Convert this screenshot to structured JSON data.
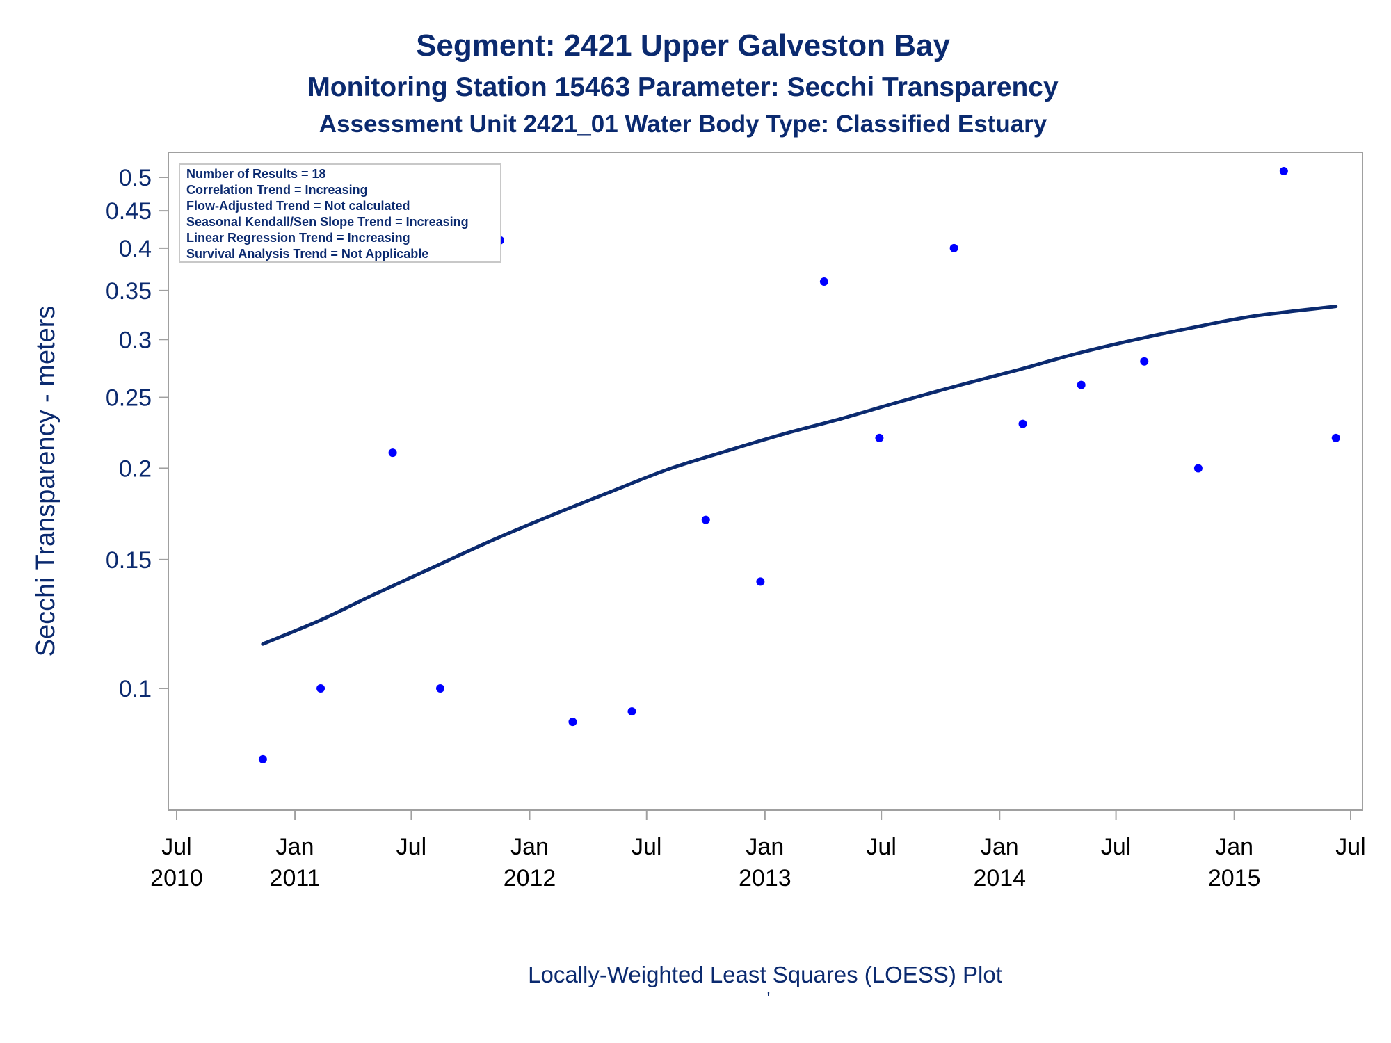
{
  "titles": [
    "Segment: 2421  Upper Galveston Bay",
    "Monitoring Station 15463 Parameter: Secchi Transparency",
    "Assessment Unit 2421_01   Water Body Type: Classified Estuary"
  ],
  "footnote": "Locally-Weighted Least Squares (LOESS) Plot",
  "footnote_mark": "'",
  "stats_box": [
    "Number of Results = 18",
    "Correlation Trend = Increasing",
    "Flow-Adjusted Trend = Not calculated",
    "Seasonal Kendall/Sen Slope Trend = Increasing",
    "Linear Regression Trend = Increasing",
    "Survival Analysis Trend = Not Applicable"
  ],
  "colors": {
    "text": "#0b2a6f",
    "points": "#0000ff",
    "loess_line": "#0b2a6f",
    "frame": "#a0a0a0"
  },
  "chart_data": {
    "type": "scatter",
    "ylabel": "Secchi Transparency - meters",
    "xlabel": "",
    "y_scale": "log",
    "ylim": [
      0.075,
      0.52
    ],
    "xlim": [
      "2010-07-01",
      "2015-07-01"
    ],
    "y_ticks": [
      "0.1",
      "0.15",
      "0.2",
      "0.25",
      "0.3",
      "0.35",
      "0.4",
      "0.45",
      "0.5"
    ],
    "x_ticks": [
      {
        "date": "2010-07-01",
        "label": [
          "Jul",
          "2010"
        ]
      },
      {
        "date": "2011-01-01",
        "label": [
          "Jan",
          "2011"
        ]
      },
      {
        "date": "2011-07-01",
        "label": [
          "Jul",
          ""
        ]
      },
      {
        "date": "2012-01-01",
        "label": [
          "Jan",
          "2012"
        ]
      },
      {
        "date": "2012-07-01",
        "label": [
          "Jul",
          ""
        ]
      },
      {
        "date": "2013-01-01",
        "label": [
          "Jan",
          "2013"
        ]
      },
      {
        "date": "2013-07-01",
        "label": [
          "Jul",
          ""
        ]
      },
      {
        "date": "2014-01-01",
        "label": [
          "Jan",
          "2014"
        ]
      },
      {
        "date": "2014-07-01",
        "label": [
          "Jul",
          ""
        ]
      },
      {
        "date": "2015-01-01",
        "label": [
          "Jan",
          "2015"
        ]
      },
      {
        "date": "2015-07-01",
        "label": [
          "Jul",
          ""
        ]
      }
    ],
    "points": [
      {
        "x": "2010-11-12",
        "y": 0.08
      },
      {
        "x": "2011-02-10",
        "y": 0.1
      },
      {
        "x": "2011-06-02",
        "y": 0.21
      },
      {
        "x": "2011-08-15",
        "y": 0.1
      },
      {
        "x": "2011-11-16",
        "y": 0.41
      },
      {
        "x": "2012-03-08",
        "y": 0.09
      },
      {
        "x": "2012-06-08",
        "y": 0.093
      },
      {
        "x": "2012-10-01",
        "y": 0.17
      },
      {
        "x": "2012-12-25",
        "y": 0.14
      },
      {
        "x": "2013-04-03",
        "y": 0.36
      },
      {
        "x": "2013-06-28",
        "y": 0.22
      },
      {
        "x": "2013-10-22",
        "y": 0.4
      },
      {
        "x": "2014-02-06",
        "y": 0.23
      },
      {
        "x": "2014-05-08",
        "y": 0.26
      },
      {
        "x": "2014-08-14",
        "y": 0.28
      },
      {
        "x": "2014-11-06",
        "y": 0.2
      },
      {
        "x": "2015-03-19",
        "y": 0.51
      },
      {
        "x": "2015-06-08",
        "y": 0.22
      }
    ],
    "loess": [
      {
        "x": "2010-11-12",
        "y": 0.115
      },
      {
        "x": "2011-02-10",
        "y": 0.124
      },
      {
        "x": "2011-05-01",
        "y": 0.134
      },
      {
        "x": "2011-08-01",
        "y": 0.146
      },
      {
        "x": "2011-11-01",
        "y": 0.159
      },
      {
        "x": "2012-02-01",
        "y": 0.172
      },
      {
        "x": "2012-05-01",
        "y": 0.185
      },
      {
        "x": "2012-08-01",
        "y": 0.199
      },
      {
        "x": "2012-11-01",
        "y": 0.211
      },
      {
        "x": "2013-02-01",
        "y": 0.223
      },
      {
        "x": "2013-05-01",
        "y": 0.234
      },
      {
        "x": "2013-08-01",
        "y": 0.247
      },
      {
        "x": "2013-11-01",
        "y": 0.26
      },
      {
        "x": "2014-02-01",
        "y": 0.273
      },
      {
        "x": "2014-05-01",
        "y": 0.287
      },
      {
        "x": "2014-08-01",
        "y": 0.3
      },
      {
        "x": "2014-11-01",
        "y": 0.312
      },
      {
        "x": "2015-02-01",
        "y": 0.323
      },
      {
        "x": "2015-06-08",
        "y": 0.333
      }
    ]
  }
}
